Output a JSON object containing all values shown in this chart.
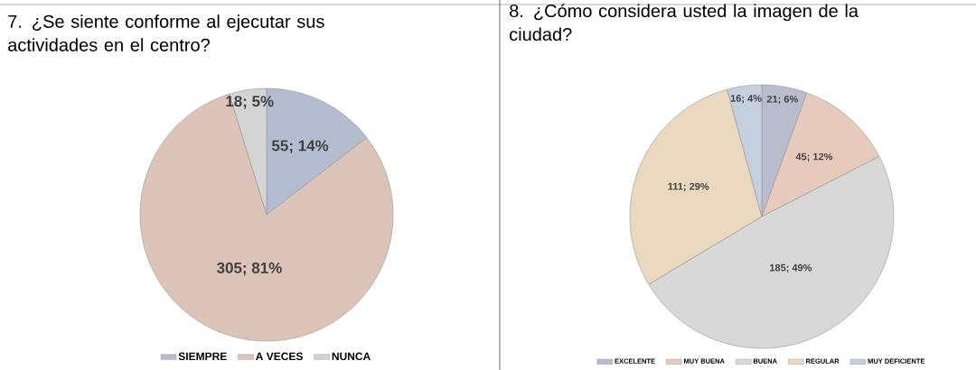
{
  "chart_data": [
    {
      "type": "pie",
      "title": "7. ¿Se siente conforme al ejecutar sus actividades en el centro?",
      "categories": [
        "SIEMPRE",
        "A VECES",
        "NUNCA"
      ],
      "values": [
        55,
        305,
        18
      ],
      "colors": [
        "#b4bccf",
        "#dcc4b9",
        "#d4d4d4"
      ],
      "value_labels": [
        "55; 14%",
        "305; 81%",
        "18; 5%"
      ],
      "legend": "bottom"
    },
    {
      "type": "pie",
      "title": "8. ¿Cómo considera usted la imagen de la ciudad?",
      "categories": [
        "EXCELENTE",
        "MUY BUENA",
        "BUENA",
        "REGULAR",
        "MUY DEFICIENTE"
      ],
      "values": [
        21,
        45,
        185,
        111,
        16
      ],
      "colors": [
        "#b9bccd",
        "#e6cbbd",
        "#d8d8d8",
        "#ead9bf",
        "#c4d0de"
      ],
      "value_labels": [
        "21; 6%",
        "45; 12%",
        "185; 49%",
        "111; 29%",
        "16; 4%"
      ],
      "legend": "bottom"
    }
  ]
}
